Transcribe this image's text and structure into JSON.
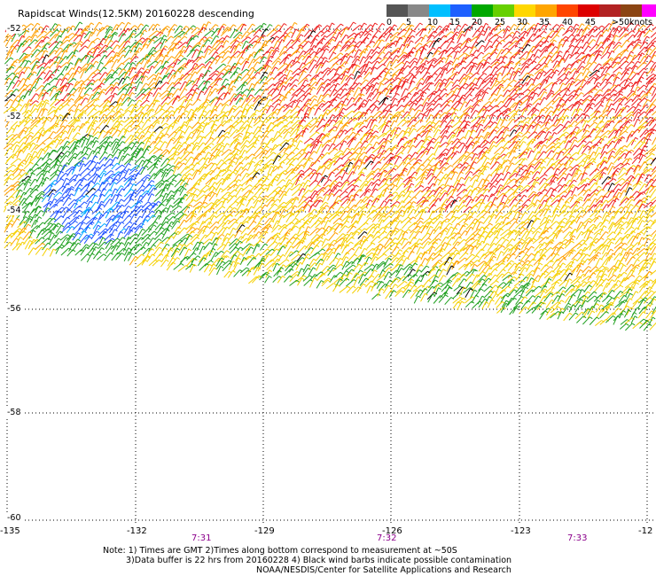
{
  "title": "Rapidscat Winds(12.5KM) 20160228 descending",
  "scale": {
    "colors": [
      "#555555",
      "#888888",
      "#00bfff",
      "#1e60ff",
      "#00a800",
      "#66d000",
      "#ffd700",
      "#ffa500",
      "#ff4500",
      "#dd0000",
      "#b22222",
      "#8b4513",
      "#ff00ff",
      "#9400d3",
      "#4b0082"
    ],
    "labels": [
      "0",
      "5",
      "10",
      "15",
      "20",
      "25",
      "30",
      "35",
      "40",
      "45",
      ">50"
    ],
    "unit": "knots"
  },
  "lat_labels": [
    "-52",
    "-52",
    "-54",
    "-56",
    "-58",
    "-60"
  ],
  "lon_labels": [
    "-135",
    "-132",
    "-129",
    "-126",
    "-123",
    "-12"
  ],
  "time_labels": [
    "7:31",
    "7:32",
    "7:33"
  ],
  "notes": [
    "Note: 1) Times are GMT 2)Times along bottom correspond to measurement at ~50S",
    "3)Data buffer is 22 hrs from 20160228 4) Black wind barbs indicate possible contamination",
    "NOAA/NESDIS/Center for Satellite Applications and Research"
  ],
  "swath_colors": {
    "red": "#ee2020",
    "orange": "#ffa000",
    "yellow": "#f5d000",
    "green": "#20a020",
    "blue": "#1e50ff",
    "cyan": "#00aaff",
    "black": "#000000"
  }
}
